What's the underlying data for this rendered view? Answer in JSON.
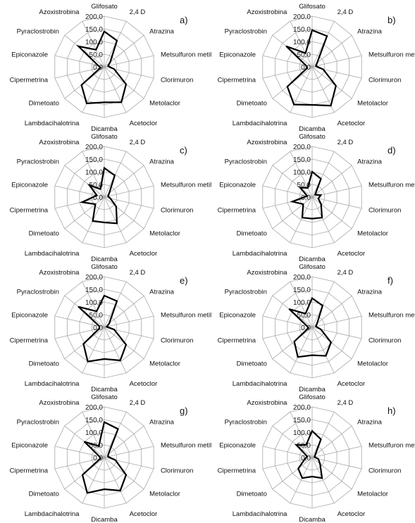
{
  "chart_data": [
    {
      "panel_label": "a)",
      "type": "radar",
      "categories": [
        "Glifosato",
        "2,4 D",
        "Atrazina",
        "Metsulfuron metil",
        "Clorimuron",
        "Metolaclor",
        "Acetoclor",
        "Dicamba",
        "Lambdacihalotrina",
        "Dimetoato",
        "Cipermetrina",
        "Epiconazole",
        "Pyraclostrobin",
        "Azoxistrobina"
      ],
      "tick_labels": [
        "0,0",
        "50,0",
        "100,0",
        "150,0",
        "200,0"
      ],
      "rlim": [
        0,
        200
      ],
      "grid": true,
      "series": [
        {
          "values": [
            140,
            115,
            30,
            15,
            40,
            110,
            155,
            140,
            160,
            115,
            15,
            25,
            130,
            75
          ]
        }
      ]
    },
    {
      "panel_label": "b)",
      "type": "radar",
      "categories": [
        "Glifosato",
        "2,4 D",
        "Atrazina",
        "Metsulfuron metil",
        "Clorimuron",
        "Metolaclor",
        "Acetoclor",
        "Dicamba",
        "Lambdacihalotrina",
        "Dimetoato",
        "Cipermetrina",
        "Epiconazole",
        "Pyraclostrobin",
        "Azoxistrobina"
      ],
      "tick_labels": [
        "0,0",
        "50,0",
        "100,0",
        "150,0",
        "200,0"
      ],
      "rlim": [
        0,
        200
      ],
      "grid": true,
      "series": [
        {
          "values": [
            145,
            135,
            25,
            15,
            45,
            120,
            170,
            150,
            165,
            125,
            20,
            25,
            130,
            60
          ]
        }
      ]
    },
    {
      "panel_label": "c)",
      "type": "radar",
      "categories": [
        "Glifosato",
        "2,4 D",
        "Atrazina",
        "Metsulfuron metil",
        "Clorimuron",
        "Metolaclor",
        "Acetoclor",
        "Dicamba",
        "Lambdacihalotrina",
        "Dimetoato",
        "Cipermetrina",
        "Epiconazole",
        "Pyraclostrobin",
        "Azoxistrobina"
      ],
      "tick_labels": [
        "0,0",
        "50,0",
        "100,0",
        "150,0",
        "200,0"
      ],
      "rlim": [
        0,
        200
      ],
      "grid": true,
      "series": [
        {
          "values": [
            115,
            95,
            25,
            15,
            25,
            60,
            115,
            100,
            105,
            45,
            90,
            30,
            75,
            35
          ]
        }
      ]
    },
    {
      "panel_label": "d)",
      "type": "radar",
      "categories": [
        "Glifosato",
        "2,4 D",
        "Atrazina",
        "Metsulfuron metil",
        "Clorimuron",
        "Metolaclor",
        "Acetoclor",
        "Dicamba",
        "Lambdacihalotrina",
        "Dimetoato",
        "Cipermetrina",
        "Epiconazole",
        "Pyraclostrobin",
        "Azoxistrobina"
      ],
      "tick_labels": [
        "0,0",
        "50,0",
        "100,0",
        "150,0",
        "200,0"
      ],
      "rlim": [
        0,
        200
      ],
      "grid": true,
      "series": [
        {
          "values": [
            100,
            80,
            15,
            35,
            25,
            45,
            90,
            85,
            90,
            45,
            80,
            20,
            60,
            40
          ]
        }
      ]
    },
    {
      "panel_label": "e)",
      "type": "radar",
      "categories": [
        "Glifosato",
        "2,4 D",
        "Atrazina",
        "Metsulfuron metil",
        "Clorimuron",
        "Metolaclor",
        "Acetoclor",
        "Dicamba",
        "Lambdacihalotrina",
        "Dimetoato",
        "Cipermetrina",
        "Epiconazole",
        "Pyraclostrobin",
        "Azoxistrobina"
      ],
      "tick_labels": [
        "0,0",
        "50,0",
        "100,0",
        "150,0",
        "200,0"
      ],
      "rlim": [
        0,
        200
      ],
      "grid": true,
      "series": [
        {
          "values": [
            125,
            115,
            25,
            10,
            40,
            110,
            145,
            125,
            150,
            105,
            20,
            20,
            130,
            70
          ]
        }
      ]
    },
    {
      "panel_label": "f)",
      "type": "radar",
      "categories": [
        "Glifosato",
        "2,4 D",
        "Atrazina",
        "Metsulfuron metil",
        "Clorimuron",
        "Metolaclor",
        "Acetoclor",
        "Dicamba",
        "Lambdacihalotrina",
        "Dimetoato",
        "Cipermetrina",
        "Epiconazole",
        "Pyraclostrobin",
        "Azoxistrobina"
      ],
      "tick_labels": [
        "0,0",
        "50,0",
        "100,0",
        "150,0",
        "200,0"
      ],
      "rlim": [
        0,
        200
      ],
      "grid": true,
      "series": [
        {
          "values": [
            115,
            95,
            25,
            15,
            35,
            95,
            125,
            110,
            130,
            90,
            15,
            20,
            115,
            60
          ]
        }
      ]
    },
    {
      "panel_label": "g)",
      "type": "radar",
      "categories": [
        "Glifosato",
        "2,4 D",
        "Atrazina",
        "Metsulfuron metil",
        "Clorimuron",
        "Metolaclor",
        "Acetoclor",
        "Dicamba",
        "Lambdacihalotrina",
        "Dimetoato",
        "Cipermetrina",
        "Epiconazole",
        "Pyraclostrobin",
        "Azoxistrobina"
      ],
      "tick_labels": [
        "0,0",
        "50,0",
        "100,0",
        "150,0",
        "200,0"
      ],
      "rlim": [
        0,
        200
      ],
      "grid": true,
      "series": [
        {
          "values": [
            140,
            125,
            20,
            15,
            45,
            110,
            145,
            125,
            155,
            110,
            15,
            20,
            100,
            50
          ]
        }
      ]
    },
    {
      "panel_label": "h)",
      "type": "radar",
      "categories": [
        "Glifosato",
        "2,4 D",
        "Atrazina",
        "Metsulfuron metil",
        "Clorimuron",
        "Metolaclor",
        "Acetoclor",
        "Dicamba",
        "Lambdacihalotrina",
        "Dimetoato",
        "Cipermetrina",
        "Epiconazole",
        "Pyraclostrobin",
        "Azoxistrobina"
      ],
      "tick_labels": [
        "0,0",
        "50,0",
        "100,0",
        "150,0",
        "200,0"
      ],
      "rlim": [
        0,
        200
      ],
      "grid": true,
      "series": [
        {
          "values": [
            105,
            80,
            15,
            10,
            25,
            40,
            90,
            75,
            90,
            70,
            30,
            20,
            80,
            55
          ]
        }
      ]
    }
  ]
}
